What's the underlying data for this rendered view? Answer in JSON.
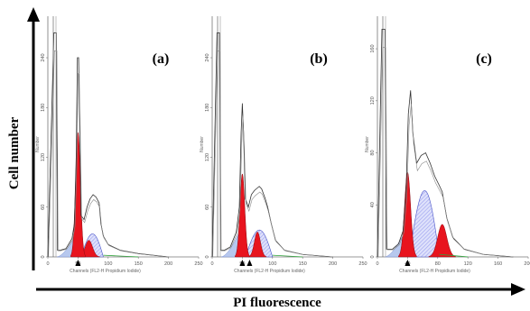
{
  "figure": {
    "x_axis_title": "PI fluorescence",
    "y_axis_title": "Cell number"
  },
  "colors": {
    "g1_peak": "#e8141e",
    "g2_peak": "#e8141e",
    "s_phase": "#9a9ef0",
    "debris": "#b7c8ee",
    "aggregate": "#2fa33a",
    "outline": "#333333",
    "axis": "#000000",
    "marker": "#000000"
  },
  "chart_data": [
    {
      "type": "histogram",
      "panel_label": "(a)",
      "xlabel": "Channels (FL2-H Propidium Iodide)",
      "ylabel": "Number",
      "x_ticks": [
        "0",
        "50",
        "100",
        "150",
        "200",
        "250"
      ],
      "y_ticks": [
        "0",
        "60",
        "120",
        "180",
        "240"
      ],
      "xlim": [
        0,
        250
      ],
      "ylim": [
        0,
        290
      ],
      "markers_x": [
        50
      ],
      "g1_peak": {
        "center": 50,
        "height": 150,
        "width": 4
      },
      "s_phase": {
        "start": 55,
        "end": 92,
        "height": 30
      },
      "g2_peak": {
        "center": 68,
        "height": 20,
        "width": 6
      },
      "debris": {
        "start": 15,
        "end": 45,
        "height": 25
      },
      "raw_outline": [
        [
          0,
          0
        ],
        [
          10,
          270
        ],
        [
          14,
          270
        ],
        [
          16,
          8
        ],
        [
          20,
          8
        ],
        [
          30,
          10
        ],
        [
          40,
          22
        ],
        [
          44,
          40
        ],
        [
          47,
          120
        ],
        [
          49,
          240
        ],
        [
          51,
          240
        ],
        [
          53,
          150
        ],
        [
          55,
          50
        ],
        [
          60,
          45
        ],
        [
          65,
          60
        ],
        [
          70,
          70
        ],
        [
          75,
          75
        ],
        [
          80,
          72
        ],
        [
          85,
          65
        ],
        [
          88,
          40
        ],
        [
          92,
          25
        ],
        [
          100,
          15
        ],
        [
          120,
          8
        ],
        [
          150,
          4
        ],
        [
          200,
          0
        ]
      ]
    },
    {
      "type": "histogram",
      "panel_label": "(b)",
      "xlabel": "Channels (FL2-H Propidium Iodide)",
      "ylabel": "Number",
      "x_ticks": [
        "0",
        "50",
        "100",
        "150",
        "200",
        "250"
      ],
      "y_ticks": [
        "0",
        "60",
        "120",
        "180",
        "240"
      ],
      "xlim": [
        0,
        250
      ],
      "ylim": [
        0,
        290
      ],
      "markers_x": [
        50,
        62
      ],
      "g1_peak": {
        "center": 50,
        "height": 100,
        "width": 4
      },
      "s_phase": {
        "start": 55,
        "end": 100,
        "height": 35
      },
      "g2_peak": {
        "center": 75,
        "height": 30,
        "width": 5
      },
      "debris": {
        "start": 15,
        "end": 45,
        "height": 30
      },
      "raw_outline": [
        [
          0,
          0
        ],
        [
          8,
          270
        ],
        [
          12,
          270
        ],
        [
          14,
          8
        ],
        [
          20,
          8
        ],
        [
          30,
          12
        ],
        [
          40,
          30
        ],
        [
          45,
          60
        ],
        [
          48,
          150
        ],
        [
          50,
          185
        ],
        [
          52,
          150
        ],
        [
          55,
          70
        ],
        [
          60,
          60
        ],
        [
          65,
          75
        ],
        [
          70,
          80
        ],
        [
          78,
          85
        ],
        [
          82,
          82
        ],
        [
          88,
          70
        ],
        [
          92,
          60
        ],
        [
          98,
          40
        ],
        [
          105,
          20
        ],
        [
          120,
          8
        ],
        [
          150,
          3
        ],
        [
          200,
          0
        ]
      ]
    },
    {
      "type": "histogram",
      "panel_label": "(c)",
      "xlabel": "Channels (FL2-H Propidium Iodide)",
      "ylabel": "Number",
      "x_ticks": [
        "0",
        "40",
        "80",
        "120",
        "160",
        "200"
      ],
      "y_ticks": [
        "0",
        "40",
        "80",
        "120",
        "160"
      ],
      "xlim": [
        0,
        200
      ],
      "ylim": [
        0,
        185
      ],
      "markers_x": [
        40
      ],
      "g1_peak": {
        "center": 40,
        "height": 65,
        "width": 4
      },
      "s_phase": {
        "start": 42,
        "end": 82,
        "height": 55
      },
      "g2_peak": {
        "center": 86,
        "height": 25,
        "width": 6
      },
      "debris": {
        "start": 10,
        "end": 35,
        "height": 18
      },
      "raw_outline": [
        [
          0,
          0
        ],
        [
          6,
          175
        ],
        [
          10,
          175
        ],
        [
          12,
          6
        ],
        [
          20,
          6
        ],
        [
          28,
          10
        ],
        [
          34,
          20
        ],
        [
          38,
          50
        ],
        [
          41,
          110
        ],
        [
          44,
          128
        ],
        [
          47,
          95
        ],
        [
          52,
          72
        ],
        [
          58,
          78
        ],
        [
          64,
          80
        ],
        [
          70,
          72
        ],
        [
          76,
          62
        ],
        [
          82,
          55
        ],
        [
          86,
          50
        ],
        [
          92,
          30
        ],
        [
          100,
          15
        ],
        [
          115,
          6
        ],
        [
          140,
          2
        ],
        [
          180,
          0
        ]
      ]
    }
  ]
}
